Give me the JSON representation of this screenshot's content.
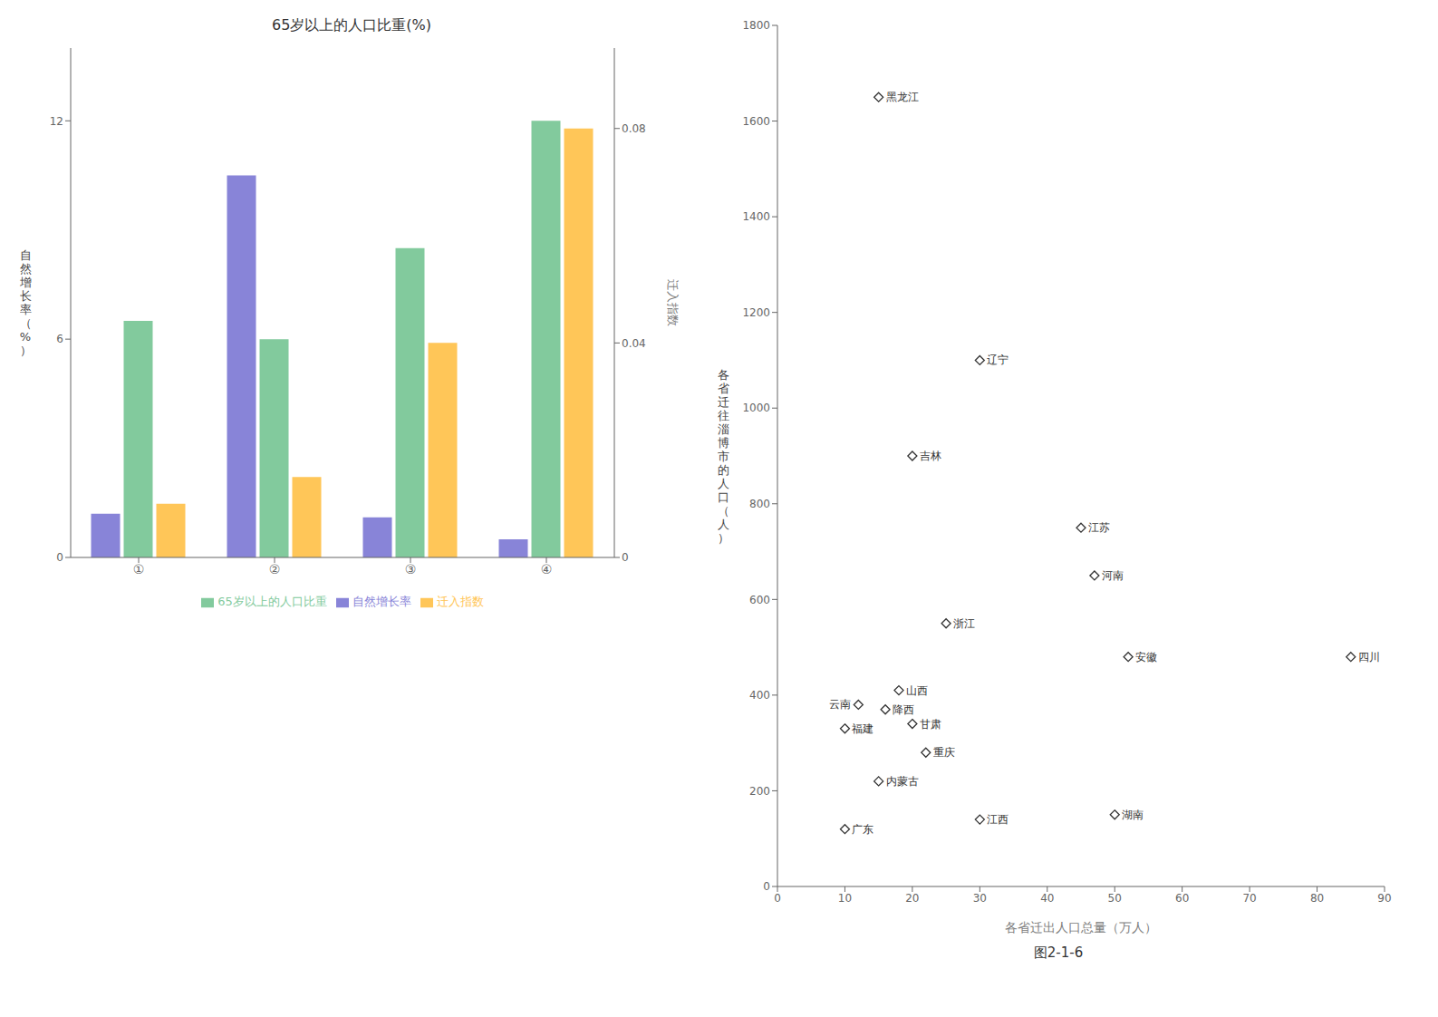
{
  "chart_data": [
    {
      "type": "bar",
      "title": "65岁以上的人口比重(%)",
      "categories": [
        "①",
        "②",
        "③",
        "④"
      ],
      "series": [
        {
          "name": "自然增长率",
          "color": "#8884d8",
          "values": [
            1.2,
            10.5,
            1.1,
            0.5
          ]
        },
        {
          "name": "65岁以上的人口比重",
          "color": "#82ca9d",
          "values": [
            6.5,
            6.0,
            8.5,
            12.0
          ]
        },
        {
          "name": "迁入指数",
          "color": "#ffc658",
          "values": [
            0.01,
            0.015,
            0.04,
            0.08
          ],
          "axis": "y2"
        }
      ],
      "ylabel": "自\n然\n增\n长\n率\n（\n%\n）",
      "y2label": "迁入指数",
      "ylim": [
        0,
        14
      ],
      "yticks": [
        0,
        6,
        12
      ],
      "y2lim": [
        0,
        0.095
      ],
      "y2ticks": [
        0,
        0.04,
        0.08
      ],
      "legend": "bottom",
      "grid": false
    },
    {
      "type": "scatter",
      "title": "图2-1-6",
      "x": [
        15,
        30,
        20,
        45,
        25,
        47,
        52,
        85,
        18,
        12,
        16,
        10,
        20,
        22,
        15,
        10,
        30,
        50
      ],
      "values": [
        1650,
        1100,
        900,
        750,
        550,
        650,
        480,
        480,
        410,
        380,
        370,
        330,
        340,
        280,
        220,
        120,
        140,
        150
      ],
      "point_labels": [
        "黑龙江",
        "辽宁",
        "吉林",
        "江苏",
        "浙江",
        "河南",
        "安徽",
        "四川",
        "山西",
        "云南",
        "降西",
        "福建",
        "甘肃",
        "重庆",
        "内蒙古",
        "广东",
        "江西",
        "湖南"
      ],
      "xlabel": "各省迁出人口总量（万人）",
      "ylabel": "各\n省\n迁\n往\n淄\n博\n市\n的\n人\n口\n（\n人\n）",
      "xlim": [
        0,
        90
      ],
      "ylim": [
        0,
        1800
      ],
      "xticks": [
        0,
        10,
        20,
        30,
        40,
        50,
        60,
        70,
        80,
        90
      ],
      "yticks": [
        0,
        200,
        400,
        600,
        800,
        1000,
        1200,
        1400,
        1600,
        1800
      ],
      "marker": "diamond",
      "color": "#333333",
      "grid": false
    }
  ]
}
